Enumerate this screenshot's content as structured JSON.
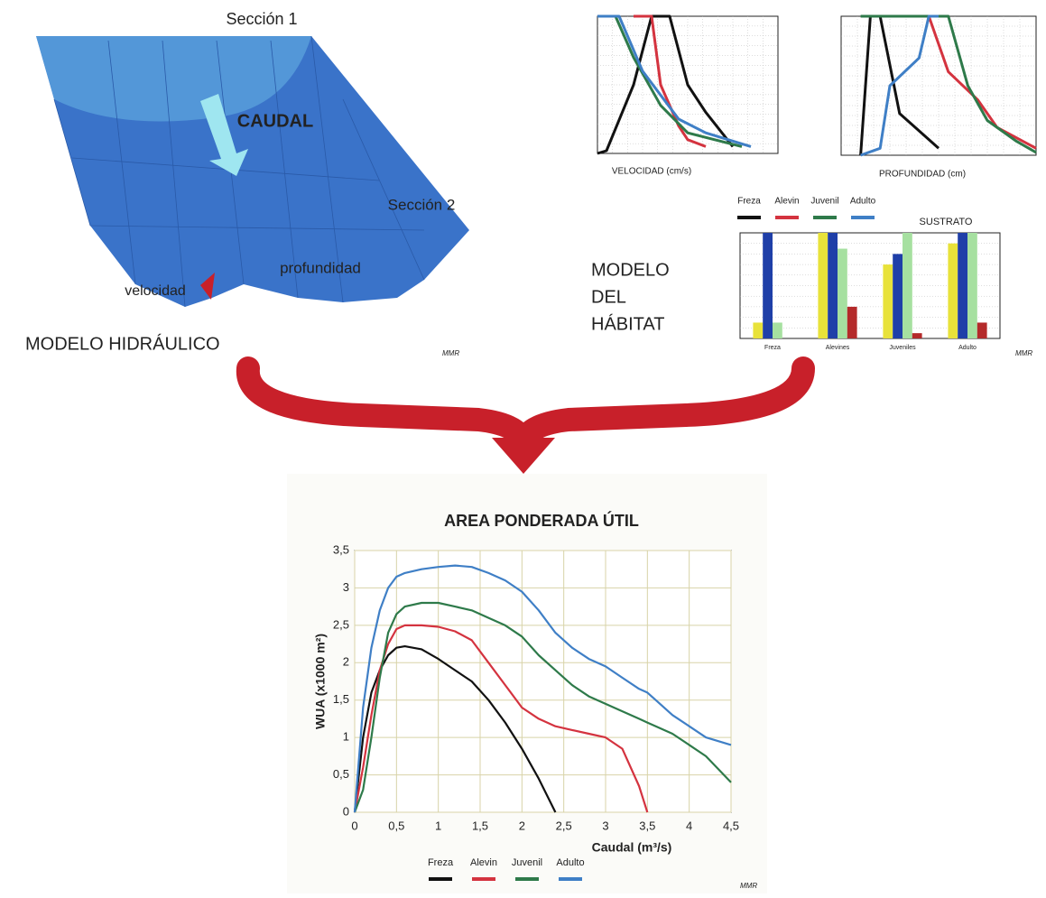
{
  "diagram": {
    "hydraulic": {
      "section1": "Sección 1",
      "flow": "CAUDAL",
      "section2": "Sección 2",
      "depth": "profundidad",
      "velocity": "velocidad",
      "title": "MODELO HIDRÁULICO",
      "signature": "MMR"
    },
    "habitat": {
      "title_lines": [
        "MODELO",
        "DEL",
        "HÁBITAT"
      ],
      "signature": "MMR"
    },
    "main_signature": "MMR"
  },
  "chart_data": [
    {
      "type": "line",
      "title": "AREA PONDERADA ÚTIL",
      "x_label": "Caudal (m³/s)",
      "y_label": "WUA (x1000 m²)",
      "x": [
        0,
        0.1,
        0.2,
        0.3,
        0.4,
        0.5,
        0.6,
        0.8,
        1,
        1.2,
        1.4,
        1.6,
        1.8,
        2,
        2.2,
        2.4,
        2.6,
        2.8,
        3,
        3.2,
        3.4,
        3.5,
        3.6,
        3.8,
        4,
        4.2,
        4.5
      ],
      "series": [
        {
          "name": "Freza",
          "color": "#111111",
          "values": [
            0,
            1.0,
            1.6,
            1.9,
            2.1,
            2.2,
            2.22,
            2.18,
            2.05,
            1.9,
            1.75,
            1.5,
            1.2,
            0.85,
            0.45,
            0,
            null,
            null,
            null,
            null,
            null,
            null,
            null,
            null,
            null,
            null,
            null
          ]
        },
        {
          "name": "Alevin",
          "color": "#d4333f",
          "values": [
            0,
            0.6,
            1.3,
            1.9,
            2.25,
            2.45,
            2.5,
            2.5,
            2.48,
            2.42,
            2.3,
            2.0,
            1.7,
            1.4,
            1.25,
            1.15,
            1.1,
            1.05,
            1.0,
            0.85,
            0.35,
            0,
            null,
            null,
            null,
            null,
            null
          ]
        },
        {
          "name": "Juvenil",
          "color": "#2e7a4a",
          "values": [
            0,
            0.3,
            1.0,
            1.8,
            2.4,
            2.65,
            2.75,
            2.8,
            2.8,
            2.75,
            2.7,
            2.6,
            2.5,
            2.35,
            2.1,
            1.9,
            1.7,
            1.55,
            1.45,
            1.35,
            1.25,
            1.2,
            1.15,
            1.05,
            0.9,
            0.75,
            0.4
          ]
        },
        {
          "name": "Adulto",
          "color": "#3f7fc6",
          "values": [
            0,
            1.4,
            2.2,
            2.7,
            3.0,
            3.15,
            3.2,
            3.25,
            3.28,
            3.3,
            3.28,
            3.2,
            3.1,
            2.95,
            2.7,
            2.4,
            2.2,
            2.05,
            1.95,
            1.8,
            1.65,
            1.6,
            1.5,
            1.3,
            1.15,
            1.0,
            0.9
          ]
        }
      ],
      "xlim": [
        0,
        4.5
      ],
      "xticks": [
        0,
        {
          "value": 0.5,
          "label": "0,5"
        },
        1,
        {
          "value": 1.5,
          "label": "1,5"
        },
        2,
        {
          "value": 2.5,
          "label": "2,5"
        },
        3,
        {
          "value": 3.5,
          "label": "3,5"
        },
        4,
        {
          "value": 4.5,
          "label": "4,5"
        }
      ],
      "ylim": [
        0,
        3.5
      ],
      "yticks": [
        0,
        {
          "value": 0.5,
          "label": "0,5"
        },
        1,
        {
          "value": 1.5,
          "label": "1,5"
        },
        2,
        {
          "value": 2.5,
          "label": "2,5"
        },
        3,
        {
          "value": 3.5,
          "label": "3,5"
        }
      ],
      "grid": true
    },
    {
      "type": "line",
      "x_label": "VELOCIDAD (cm/s)",
      "xlim": [
        0,
        1
      ],
      "ylim": [
        0,
        1
      ],
      "grid": true,
      "series": [
        {
          "name": "Freza",
          "color": "#111111",
          "x": [
            0,
            0.05,
            0.2,
            0.3,
            0.4,
            0.5,
            0.6,
            0.75
          ],
          "values": [
            0,
            0.02,
            0.5,
            1,
            1,
            0.5,
            0.3,
            0.05
          ]
        },
        {
          "name": "Alevin",
          "color": "#d4333f",
          "x": [
            0.2,
            0.3,
            0.35,
            0.45,
            0.5,
            0.6
          ],
          "values": [
            1,
            1,
            0.5,
            0.2,
            0.1,
            0.05
          ]
        },
        {
          "name": "Juvenil",
          "color": "#2e7a4a",
          "x": [
            0,
            0.1,
            0.2,
            0.35,
            0.5,
            0.8
          ],
          "values": [
            1,
            1,
            0.7,
            0.35,
            0.15,
            0.05
          ]
        },
        {
          "name": "Adulto",
          "color": "#3f7fc6",
          "x": [
            0,
            0.12,
            0.25,
            0.45,
            0.6,
            0.85
          ],
          "values": [
            1,
            1,
            0.6,
            0.25,
            0.15,
            0.05
          ]
        }
      ]
    },
    {
      "type": "line",
      "x_label": "PROFUNDIDAD (cm)",
      "xlim": [
        0,
        1
      ],
      "ylim": [
        0,
        1
      ],
      "grid": true,
      "series": [
        {
          "color": "#111111",
          "x": [
            0.1,
            0.15,
            0.2,
            0.3,
            0.5
          ],
          "values": [
            0,
            1,
            1,
            0.3,
            0.05
          ]
        },
        {
          "color": "#d4333f",
          "x": [
            0.15,
            0.45,
            0.55,
            0.7,
            0.8,
            1
          ],
          "values": [
            1,
            1,
            0.6,
            0.4,
            0.2,
            0.05
          ]
        },
        {
          "color": "#2e7a4a",
          "x": [
            0.1,
            0.55,
            0.65,
            0.75,
            0.9,
            1
          ],
          "values": [
            1,
            1,
            0.5,
            0.25,
            0.1,
            0.02
          ]
        },
        {
          "color": "#3f7fc6",
          "x": [
            0.1,
            0.2,
            0.25,
            0.4,
            0.45,
            0.5
          ],
          "values": [
            0,
            0.05,
            0.5,
            0.7,
            1,
            1
          ]
        }
      ]
    },
    {
      "type": "bar",
      "title": "SUSTRATO",
      "categories": [
        "Freza",
        "Alevines",
        "Juveniles",
        "Adulto"
      ],
      "ylim": [
        0,
        1
      ],
      "grid": true,
      "series": [
        {
          "color": "#e8e23a",
          "values": [
            0.15,
            1,
            0.7,
            0.9
          ]
        },
        {
          "color": "#1f3fa8",
          "values": [
            1,
            1,
            0.8,
            1
          ]
        },
        {
          "color": "#a6e0a0",
          "values": [
            0.15,
            0.85,
            1,
            1
          ]
        },
        {
          "color": "#b42a2a",
          "values": [
            0,
            0.3,
            0.05,
            0.15
          ]
        }
      ]
    }
  ]
}
